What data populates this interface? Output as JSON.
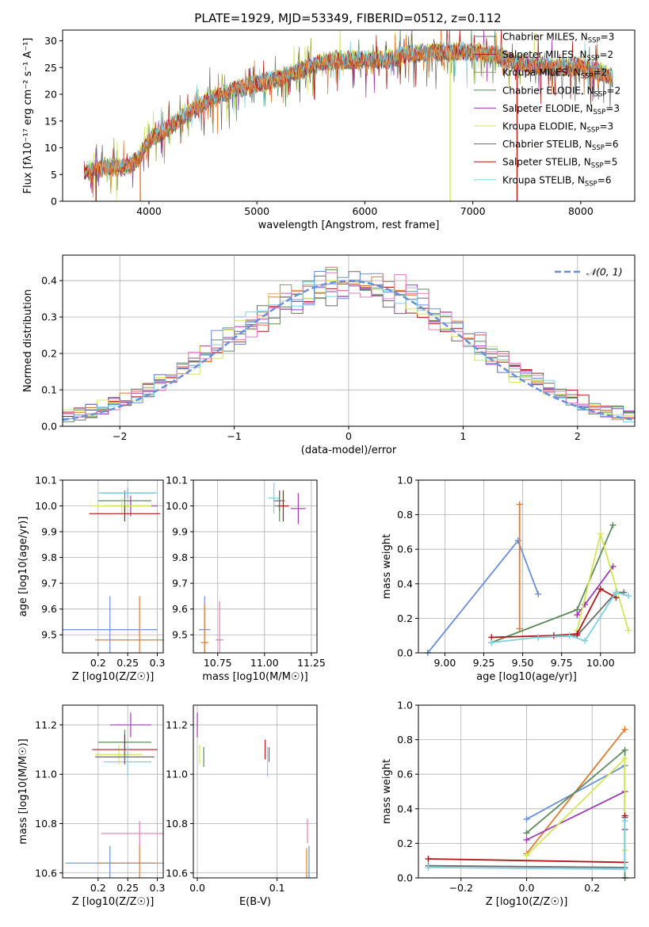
{
  "figure": {
    "title": "PLATE=1929, MJD=53349, FIBERID=0512, z=0.112"
  },
  "colors": {
    "blue": "#6a8fd9",
    "orange": "#e07b30",
    "darkgreen": "#5f8a5f",
    "purple": "#9c3bb6",
    "yellowgreen": "#d4e65a",
    "gray": "#6b6b6b",
    "red": "#b01818",
    "cyan": "#7fd0e0",
    "pink": "#e57ab8",
    "olive": "#9aa23a",
    "grid": "#b0b0b0"
  },
  "chart_data": [
    {
      "id": "spectrum",
      "type": "line",
      "xlabel": "wavelength [Angstrom, rest frame]",
      "ylabel": "Flux [fλ10⁻¹⁷ erg cm⁻² s⁻¹ A⁻¹]",
      "xlim": [
        3200,
        8500
      ],
      "ylim": [
        0,
        32
      ],
      "xticks": [
        4000,
        5000,
        6000,
        7000,
        8000
      ],
      "yticks": [
        0,
        5,
        10,
        15,
        20,
        25,
        30
      ],
      "grid": false,
      "legend_position": "top-right",
      "continuum": {
        "x": [
          3400,
          3600,
          3800,
          3900,
          4000,
          4200,
          4400,
          4600,
          4800,
          5000,
          5200,
          5400,
          5600,
          5800,
          6000,
          6200,
          6400,
          6600,
          6800,
          7000,
          7200,
          7400,
          7600,
          7800,
          8000,
          8200,
          8300
        ],
        "y": [
          5.5,
          6.5,
          6.5,
          8.0,
          11.5,
          14.0,
          17.0,
          19.5,
          21.0,
          22.0,
          23.0,
          24.5,
          26.0,
          26.5,
          26.5,
          26.5,
          27.5,
          28.0,
          28.0,
          28.0,
          27.5,
          26.0,
          25.5,
          25.0,
          25.5,
          24.0,
          23.0
        ]
      },
      "series": [
        {
          "name": "Chabrier MILES, N_SSP=3",
          "name_parts": [
            "Chabrier MILES, N",
            "SSP",
            "=3"
          ],
          "color": "#6b6b6b"
        },
        {
          "name": "Salpeter MILES, N_SSP=2",
          "name_parts": [
            "Salpeter MILES, N",
            "SSP",
            "=2"
          ],
          "color": "#b01818"
        },
        {
          "name": "Kroupa MILES, N_SSP=2",
          "name_parts": [
            "Kroupa MILES, N",
            "SSP",
            "=2"
          ],
          "color": "#9aa23a"
        },
        {
          "name": "Chabrier ELODIE, N_SSP=2",
          "name_parts": [
            "Chabrier ELODIE, N",
            "SSP",
            "=2"
          ],
          "color": "#5f8a5f"
        },
        {
          "name": "Salpeter ELODIE, N_SSP=3",
          "name_parts": [
            "Salpeter ELODIE, N",
            "SSP",
            "=3"
          ],
          "color": "#9c3bb6"
        },
        {
          "name": "Kroupa ELODIE, N_SSP=3",
          "name_parts": [
            "Kroupa ELODIE, N",
            "SSP",
            "=3"
          ],
          "color": "#d4e65a"
        },
        {
          "name": "Chabrier STELIB, N_SSP=6",
          "name_parts": [
            "Chabrier STELIB, N",
            "SSP",
            "=6"
          ],
          "color": "#6b6b6b"
        },
        {
          "name": "Salpeter STELIB, N_SSP=5",
          "name_parts": [
            "Salpeter STELIB, N",
            "SSP",
            "=5"
          ],
          "color": "#b01818"
        },
        {
          "name": "Kroupa STELIB, N_SSP=6",
          "name_parts": [
            "Kroupa STELIB, N",
            "SSP",
            "=6"
          ],
          "color": "#7fd0e0"
        }
      ],
      "dips": [
        {
          "x": 3510,
          "y": 0
        },
        {
          "x": 3920,
          "y": 0
        },
        {
          "x": 6790,
          "y": 0
        },
        {
          "x": 7410,
          "y": 0
        }
      ]
    },
    {
      "id": "residuals",
      "type": "area",
      "xlabel": "(data-model)/error",
      "ylabel": "Normed distribution",
      "xlim": [
        -2.5,
        2.5
      ],
      "ylim": [
        0,
        0.47
      ],
      "xticks": [
        -2,
        -1,
        0,
        1,
        2
      ],
      "yticks": [
        0.0,
        0.1,
        0.2,
        0.3,
        0.4
      ],
      "grid": true,
      "legend_position": "top-right",
      "legend_label": "𝒩(0, 1)",
      "gaussian": {
        "mu": 0,
        "sigma": 1,
        "color": "#6a8fd9"
      },
      "bin_width": 0.1,
      "histogram_colors": [
        "#6b6b6b",
        "#b01818",
        "#e07b30",
        "#5f8a5f",
        "#9c3bb6",
        "#d4e65a",
        "#6a8fd9",
        "#7fd0e0",
        "#e57ab8"
      ]
    },
    {
      "id": "age-vs-Z",
      "type": "scatter",
      "xlabel": "Z [log10(Z/Z☉)]",
      "ylabel": "age  [log10(age/yr)]",
      "xlim": [
        0.14,
        0.31
      ],
      "ylim": [
        9.43,
        10.1
      ],
      "xticks": [
        0.2,
        0.25,
        0.3
      ],
      "yticks": [
        9.5,
        9.6,
        9.7,
        9.8,
        9.9,
        10.0,
        10.1
      ],
      "grid": true,
      "points": [
        {
          "x": 0.22,
          "y": 9.52,
          "xerr": 0.08,
          "yerr": 0.13,
          "color": "#6a8fd9"
        },
        {
          "x": 0.27,
          "y": 9.48,
          "xerr": 0.075,
          "yerr": 0.17,
          "color": "#e07b30"
        },
        {
          "x": 0.245,
          "y": 10.02,
          "xerr": 0.045,
          "yerr": 0.04,
          "color": "#5f8a5f"
        },
        {
          "x": 0.255,
          "y": 10.0,
          "xerr": 0.045,
          "yerr": 0.04,
          "color": "#9c3bb6"
        },
        {
          "x": 0.24,
          "y": 10.0,
          "xerr": 0.05,
          "yerr": 0.03,
          "color": "#d4e65a"
        },
        {
          "x": 0.25,
          "y": 10.05,
          "xerr": 0.045,
          "yerr": 0.02,
          "color": "#6b6b6b"
        },
        {
          "x": 0.245,
          "y": 9.97,
          "xerr": 0.06,
          "yerr": 0.03,
          "color": "#b01818"
        },
        {
          "x": 0.25,
          "y": 10.05,
          "xerr": 0.05,
          "yerr": 0.02,
          "color": "#7fd0e0"
        }
      ]
    },
    {
      "id": "age-vs-mass",
      "type": "scatter",
      "xlabel": "mass [log10(M/M☉)]",
      "ylabel": "",
      "xlim": [
        10.62,
        11.28
      ],
      "ylim": [
        9.43,
        10.1
      ],
      "xticks": [
        10.75,
        11.0,
        11.25
      ],
      "yticks": [
        9.5,
        9.6,
        9.7,
        9.8,
        9.9,
        10.0,
        10.1
      ],
      "grid": true,
      "points": [
        {
          "x": 10.68,
          "y": 9.52,
          "xerr": 0.03,
          "yerr": 0.13,
          "color": "#6a8fd9"
        },
        {
          "x": 10.68,
          "y": 9.47,
          "xerr": 0.02,
          "yerr": 0.15,
          "color": "#e07b30"
        },
        {
          "x": 10.76,
          "y": 9.48,
          "xerr": 0.02,
          "yerr": 0.15,
          "color": "#e57ab8"
        },
        {
          "x": 11.08,
          "y": 10.0,
          "xerr": 0.03,
          "yerr": 0.06,
          "color": "#5f8a5f"
        },
        {
          "x": 11.18,
          "y": 9.99,
          "xerr": 0.04,
          "yerr": 0.06,
          "color": "#9c3bb6"
        },
        {
          "x": 11.1,
          "y": 10.0,
          "xerr": 0.03,
          "yerr": 0.04,
          "color": "#d4e65a"
        },
        {
          "x": 11.1,
          "y": 10.0,
          "xerr": 0.03,
          "yerr": 0.06,
          "color": "#b01818"
        },
        {
          "x": 11.05,
          "y": 10.03,
          "xerr": 0.03,
          "yerr": 0.06,
          "color": "#7fd0e0"
        },
        {
          "x": 11.08,
          "y": 10.02,
          "xerr": 0.03,
          "yerr": 0.04,
          "color": "#6b6b6b"
        }
      ]
    },
    {
      "id": "weight-vs-age",
      "type": "line",
      "xlabel": "age  [log10(age/yr)]",
      "ylabel": "mass weight",
      "xlim": [
        8.83,
        10.22
      ],
      "ylim": [
        0,
        1.0
      ],
      "xticks": [
        9.0,
        9.25,
        9.5,
        9.75,
        10.0
      ],
      "yticks": [
        0.0,
        0.2,
        0.4,
        0.6,
        0.8,
        1.0
      ],
      "grid": true,
      "series": [
        {
          "color": "#6a8fd9",
          "x": [
            8.89,
            9.47,
            9.6
          ],
          "y": [
            0.0,
            0.65,
            0.34
          ]
        },
        {
          "color": "#e07b30",
          "x": [
            9.48,
            9.48
          ],
          "y": [
            0.14,
            0.86
          ]
        },
        {
          "color": "#5f8a5f",
          "x": [
            9.3,
            9.85,
            10.08
          ],
          "y": [
            0.06,
            0.25,
            0.74
          ]
        },
        {
          "color": "#9c3bb6",
          "x": [
            9.85,
            9.9,
            10.08
          ],
          "y": [
            0.22,
            0.28,
            0.5
          ]
        },
        {
          "color": "#d4e65a",
          "x": [
            9.85,
            10.0,
            10.18
          ],
          "y": [
            0.13,
            0.69,
            0.13
          ]
        },
        {
          "color": "#6b6b6b",
          "x": [
            9.6,
            9.85,
            10.1,
            10.15
          ],
          "y": [
            0.09,
            0.1,
            0.35,
            0.35
          ]
        },
        {
          "color": "#b01818",
          "x": [
            9.3,
            9.7,
            9.85,
            10.0,
            10.1
          ],
          "y": [
            0.09,
            0.1,
            0.11,
            0.37,
            0.32
          ]
        },
        {
          "color": "#7fd0e0",
          "x": [
            9.3,
            9.6,
            9.8,
            9.9,
            10.1,
            10.18
          ],
          "y": [
            0.06,
            0.09,
            0.1,
            0.07,
            0.35,
            0.33
          ]
        }
      ]
    },
    {
      "id": "mass-vs-Z",
      "type": "scatter",
      "xlabel": "Z [log10(Z/Z☉)]",
      "ylabel": "mass [log10(M/M☉)]",
      "xlim": [
        0.14,
        0.31
      ],
      "ylim": [
        10.58,
        11.28
      ],
      "xticks": [
        0.2,
        0.25,
        0.3
      ],
      "yticks": [
        10.6,
        10.8,
        11.0,
        11.2
      ],
      "grid": true,
      "points": [
        {
          "x": 0.22,
          "y": 10.64,
          "xerr": 0.075,
          "yerr": 0.07,
          "color": "#6a8fd9"
        },
        {
          "x": 0.27,
          "y": 10.64,
          "xerr": 0.07,
          "yerr": 0.07,
          "color": "#e07b30"
        },
        {
          "x": 0.27,
          "y": 10.76,
          "xerr": 0.065,
          "yerr": 0.05,
          "color": "#e57ab8"
        },
        {
          "x": 0.245,
          "y": 11.13,
          "xerr": 0.045,
          "yerr": 0.05,
          "color": "#5f8a5f"
        },
        {
          "x": 0.255,
          "y": 11.2,
          "xerr": 0.035,
          "yerr": 0.05,
          "color": "#9c3bb6"
        },
        {
          "x": 0.235,
          "y": 11.08,
          "xerr": 0.04,
          "yerr": 0.04,
          "color": "#d4e65a"
        },
        {
          "x": 0.245,
          "y": 11.1,
          "xerr": 0.055,
          "yerr": 0.06,
          "color": "#b01818"
        },
        {
          "x": 0.25,
          "y": 11.05,
          "xerr": 0.04,
          "yerr": 0.06,
          "color": "#7fd0e0"
        },
        {
          "x": 0.245,
          "y": 11.07,
          "xerr": 0.05,
          "yerr": 0.03,
          "color": "#6b6b6b"
        }
      ]
    },
    {
      "id": "mass-vs-ebv",
      "type": "scatter",
      "xlabel": "E(B-V)",
      "ylabel": "",
      "xlim": [
        -0.005,
        0.15
      ],
      "ylim": [
        10.58,
        11.28
      ],
      "xticks": [
        0.0,
        0.1
      ],
      "yticks": [
        10.6,
        10.8,
        11.0,
        11.2
      ],
      "grid": true,
      "points": [
        {
          "x": 0.0,
          "y": 11.2,
          "xerr": 0,
          "yerr": 0.05,
          "color": "#9c3bb6"
        },
        {
          "x": 0.003,
          "y": 11.08,
          "xerr": 0,
          "yerr": 0.04,
          "color": "#d4e65a"
        },
        {
          "x": 0.008,
          "y": 11.07,
          "xerr": 0,
          "yerr": 0.04,
          "color": "#5f8a5f"
        },
        {
          "x": 0.085,
          "y": 11.1,
          "xerr": 0,
          "yerr": 0.04,
          "color": "#b01818"
        },
        {
          "x": 0.088,
          "y": 11.05,
          "xerr": 0,
          "yerr": 0.06,
          "color": "#7fd0e0"
        },
        {
          "x": 0.09,
          "y": 11.08,
          "xerr": 0,
          "yerr": 0.03,
          "color": "#6b6b6b"
        },
        {
          "x": 0.137,
          "y": 10.64,
          "xerr": 0,
          "yerr": 0.06,
          "color": "#e07b30"
        },
        {
          "x": 0.14,
          "y": 10.64,
          "xerr": 0,
          "yerr": 0.07,
          "color": "#6a8fd9"
        },
        {
          "x": 0.138,
          "y": 10.77,
          "xerr": 0,
          "yerr": 0.05,
          "color": "#e57ab8"
        }
      ]
    },
    {
      "id": "weight-vs-Z",
      "type": "line",
      "xlabel": "Z [log10(Z/Z☉)]",
      "ylabel": "mass weight",
      "xlim": [
        -0.33,
        0.33
      ],
      "ylim": [
        0,
        1.0
      ],
      "xticks": [
        -0.2,
        0.0,
        0.2
      ],
      "yticks": [
        0.0,
        0.2,
        0.4,
        0.6,
        0.8,
        1.0
      ],
      "grid": true,
      "series": [
        {
          "color": "#6a8fd9",
          "x": [
            0.0,
            0.3,
            0.3
          ],
          "y": [
            0.34,
            0.65,
            0.0
          ]
        },
        {
          "color": "#e07b30",
          "x": [
            0.0,
            0.3
          ],
          "y": [
            0.14,
            0.86
          ]
        },
        {
          "color": "#5f8a5f",
          "x": [
            0.0,
            0.3,
            0.3
          ],
          "y": [
            0.26,
            0.74,
            0.0
          ]
        },
        {
          "color": "#9c3bb6",
          "x": [
            0.0,
            0.3,
            0.3
          ],
          "y": [
            0.22,
            0.5,
            0.28
          ]
        },
        {
          "color": "#d4e65a",
          "x": [
            0.0,
            0.3,
            0.3
          ],
          "y": [
            0.13,
            0.69,
            0.16
          ]
        },
        {
          "color": "#6b6b6b",
          "x": [
            -0.3,
            0.3,
            0.3
          ],
          "y": [
            0.07,
            0.06,
            0.35
          ]
        },
        {
          "color": "#b01818",
          "x": [
            -0.3,
            0.3,
            0.3
          ],
          "y": [
            0.11,
            0.09,
            0.36
          ]
        },
        {
          "color": "#7fd0e0",
          "x": [
            -0.3,
            0.3,
            0.3
          ],
          "y": [
            0.06,
            0.05,
            0.33
          ]
        }
      ]
    }
  ]
}
